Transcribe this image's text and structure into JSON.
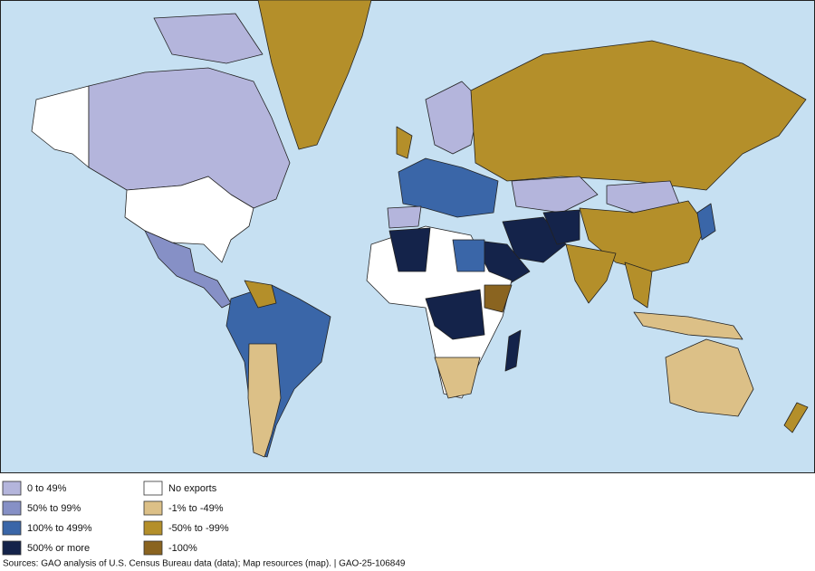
{
  "legend": {
    "items": [
      {
        "label": "0 to 49%",
        "color": "#b4b5dc"
      },
      {
        "label": "50% to 99%",
        "color": "#8690c6"
      },
      {
        "label": "100% to 499%",
        "color": "#3a66a8"
      },
      {
        "label": "500% or more",
        "color": "#14234a"
      },
      {
        "label": "No exports",
        "color": "#ffffff"
      },
      {
        "label": "-1% to -49%",
        "color": "#dcc087"
      },
      {
        "label": "-50% to -99%",
        "color": "#b48f2a"
      },
      {
        "label": "-100%",
        "color": "#8a6420"
      }
    ]
  },
  "source": "Sources: GAO analysis of U.S. Census Bureau data (data); Map resources (map).  |  GAO-25-106849"
}
